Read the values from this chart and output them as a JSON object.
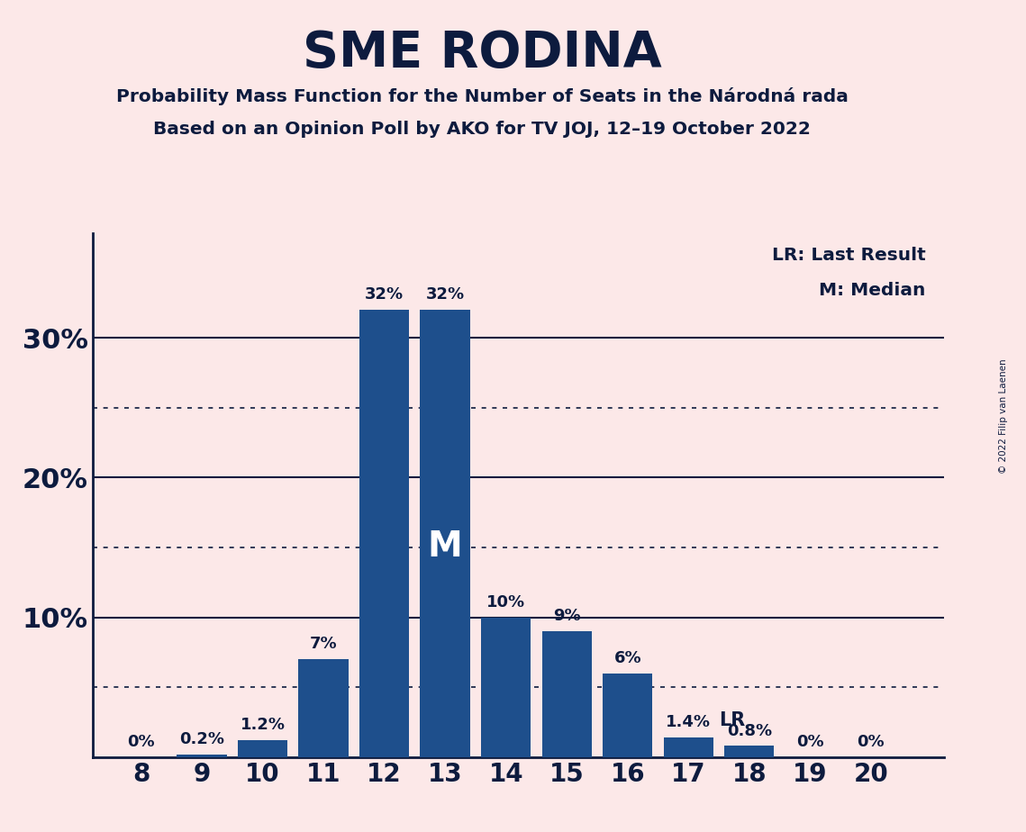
{
  "title": "SME RODINA",
  "subtitle1": "Probability Mass Function for the Number of Seats in the Národná rada",
  "subtitle2": "Based on an Opinion Poll by AKO for TV JOJ, 12–19 October 2022",
  "copyright": "© 2022 Filip van Laenen",
  "seats": [
    8,
    9,
    10,
    11,
    12,
    13,
    14,
    15,
    16,
    17,
    18,
    19,
    20
  ],
  "probabilities": [
    0.0,
    0.002,
    0.012,
    0.07,
    0.32,
    0.32,
    0.1,
    0.09,
    0.06,
    0.014,
    0.008,
    0.0,
    0.0
  ],
  "bar_labels": [
    "0%",
    "0.2%",
    "1.2%",
    "7%",
    "32%",
    "32%",
    "10%",
    "9%",
    "6%",
    "1.4%",
    "0.8%",
    "0%",
    "0%"
  ],
  "bar_color": "#1e4f8c",
  "median_seat": 13,
  "lr_seat": 17,
  "background_color": "#fce8e8",
  "title_color": "#0d1b3e",
  "text_color": "#0d1b3e",
  "legend_line1": "LR: Last Result",
  "legend_line2": "M: Median",
  "ylim": [
    0,
    0.375
  ],
  "yticks": [
    0.1,
    0.2,
    0.3
  ],
  "ytick_labels": [
    "10%",
    "20%",
    "30%"
  ],
  "dotted_lines": [
    0.05,
    0.15,
    0.25
  ],
  "solid_lines": [
    0.1,
    0.2,
    0.3
  ]
}
